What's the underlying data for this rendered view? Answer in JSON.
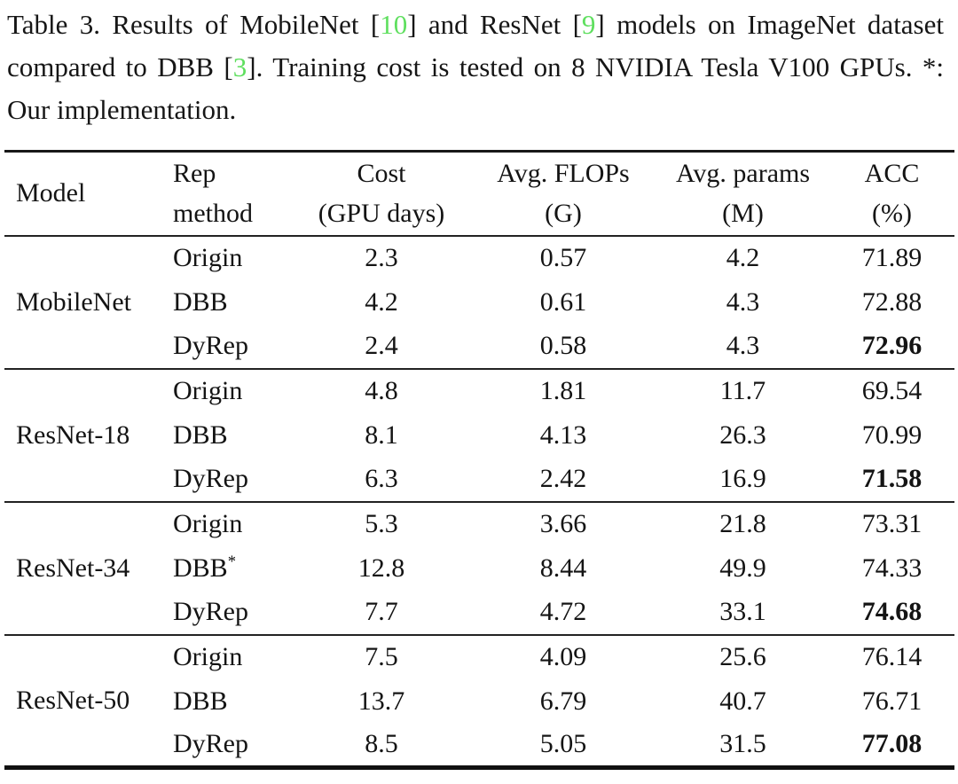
{
  "caption": {
    "segments": [
      {
        "text": "Table 3.  Results of MobileNet ["
      },
      {
        "text": "10",
        "type": "citation"
      },
      {
        "text": "] and ResNet ["
      },
      {
        "text": "9",
        "type": "citation"
      },
      {
        "text": "] models on ImageNet dataset compared to DBB ["
      },
      {
        "text": "3",
        "type": "citation"
      },
      {
        "text": "]. Training cost is tested on 8 NVIDIA Tesla V100 GPUs. *: Our implementation."
      }
    ]
  },
  "colors": {
    "citation_green": "#5fdf5f",
    "text": "#161616",
    "rule": "#181818"
  },
  "table": {
    "headers": {
      "model": "Model",
      "rep": {
        "line1": "Rep",
        "line2": "method"
      },
      "cost": {
        "line1": "Cost",
        "line2": "(GPU days)"
      },
      "flops": {
        "line1": "Avg. FLOPs",
        "line2": "(G)"
      },
      "params": {
        "line1": "Avg. params",
        "line2": "(M)"
      },
      "acc": {
        "line1": "ACC",
        "line2": "(%)"
      }
    },
    "sections": [
      {
        "model": "MobileNet",
        "rows": [
          {
            "rep": "Origin",
            "cost": "2.3",
            "flops": "0.57",
            "params": "4.2",
            "acc": "71.89"
          },
          {
            "rep": "DBB",
            "cost": "4.2",
            "flops": "0.61",
            "params": "4.3",
            "acc": "72.88"
          },
          {
            "rep": "DyRep",
            "cost": "2.4",
            "flops": "0.58",
            "params": "4.3",
            "acc": "72.96",
            "acc_bold": true
          }
        ]
      },
      {
        "model": "ResNet-18",
        "rows": [
          {
            "rep": "Origin",
            "cost": "4.8",
            "flops": "1.81",
            "params": "11.7",
            "acc": "69.54"
          },
          {
            "rep": "DBB",
            "cost": "8.1",
            "flops": "4.13",
            "params": "26.3",
            "acc": "70.99"
          },
          {
            "rep": "DyRep",
            "cost": "6.3",
            "flops": "2.42",
            "params": "16.9",
            "acc": "71.58",
            "acc_bold": true
          }
        ]
      },
      {
        "model": "ResNet-34",
        "rows": [
          {
            "rep": "Origin",
            "cost": "5.3",
            "flops": "3.66",
            "params": "21.8",
            "acc": "73.31"
          },
          {
            "rep": "DBB",
            "rep_sup": "*",
            "cost": "12.8",
            "flops": "8.44",
            "params": "49.9",
            "acc": "74.33"
          },
          {
            "rep": "DyRep",
            "cost": "7.7",
            "flops": "4.72",
            "params": "33.1",
            "acc": "74.68",
            "acc_bold": true
          }
        ]
      },
      {
        "model": "ResNet-50",
        "rows": [
          {
            "rep": "Origin",
            "cost": "7.5",
            "flops": "4.09",
            "params": "25.6",
            "acc": "76.14"
          },
          {
            "rep": "DBB",
            "cost": "13.7",
            "flops": "6.79",
            "params": "40.7",
            "acc": "76.71"
          },
          {
            "rep": "DyRep",
            "cost": "8.5",
            "flops": "5.05",
            "params": "31.5",
            "acc": "77.08",
            "acc_bold": true
          }
        ]
      }
    ]
  }
}
